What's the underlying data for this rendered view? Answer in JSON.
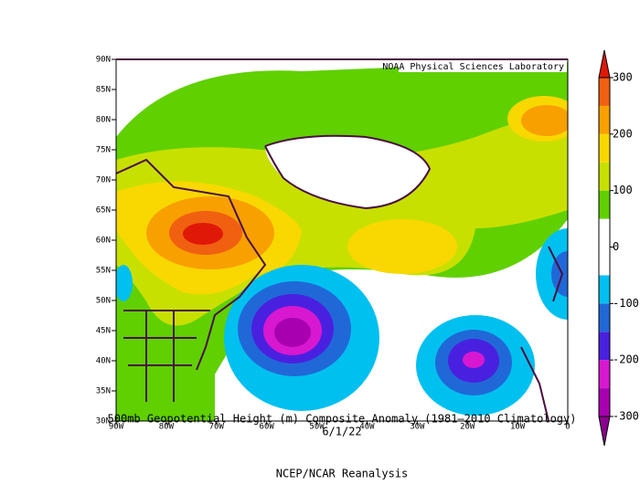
{
  "map": {
    "credit": "NOAA Physical Sciences Laboratory",
    "title": "500mb Geopotential Height (m) Composite Anomaly (1981–2010 Climatology)",
    "date": "6/1/22",
    "source": "NCEP/NCAR Reanalysis",
    "lat_range": [
      30,
      90
    ],
    "lon_range": [
      -90,
      0
    ],
    "lat_ticks": [
      {
        "value": 90,
        "label": "90N"
      },
      {
        "value": 85,
        "label": "85N"
      },
      {
        "value": 80,
        "label": "80N"
      },
      {
        "value": 75,
        "label": "75N"
      },
      {
        "value": 70,
        "label": "70N"
      },
      {
        "value": 65,
        "label": "65N"
      },
      {
        "value": 60,
        "label": "60N"
      },
      {
        "value": 55,
        "label": "55N"
      },
      {
        "value": 50,
        "label": "50N"
      },
      {
        "value": 45,
        "label": "45N"
      },
      {
        "value": 40,
        "label": "40N"
      },
      {
        "value": 35,
        "label": "35N"
      },
      {
        "value": 30,
        "label": "30N"
      }
    ],
    "lon_ticks": [
      {
        "value": -90,
        "label": "90W"
      },
      {
        "value": -80,
        "label": "80W"
      },
      {
        "value": -70,
        "label": "70W"
      },
      {
        "value": -60,
        "label": "60W"
      },
      {
        "value": -50,
        "label": "50W"
      },
      {
        "value": -40,
        "label": "40W"
      },
      {
        "value": -30,
        "label": "30W"
      },
      {
        "value": -20,
        "label": "20W"
      },
      {
        "value": -10,
        "label": "10W"
      },
      0
    ],
    "colorbar": {
      "range": [
        -300,
        300
      ],
      "ticks": [
        300,
        200,
        100,
        0,
        -100,
        -200,
        -300
      ],
      "levels": [
        -300,
        -250,
        -200,
        -150,
        -100,
        -50,
        50,
        100,
        150,
        200,
        250,
        300
      ],
      "colors": [
        "#8a0090",
        "#a800b0",
        "#d818d0",
        "#4a20e0",
        "#2068d8",
        "#00c0f0",
        "#ffffff",
        "#60d000",
        "#c8e000",
        "#f8d800",
        "#f8a000",
        "#f06010",
        "#e01808"
      ]
    }
  }
}
